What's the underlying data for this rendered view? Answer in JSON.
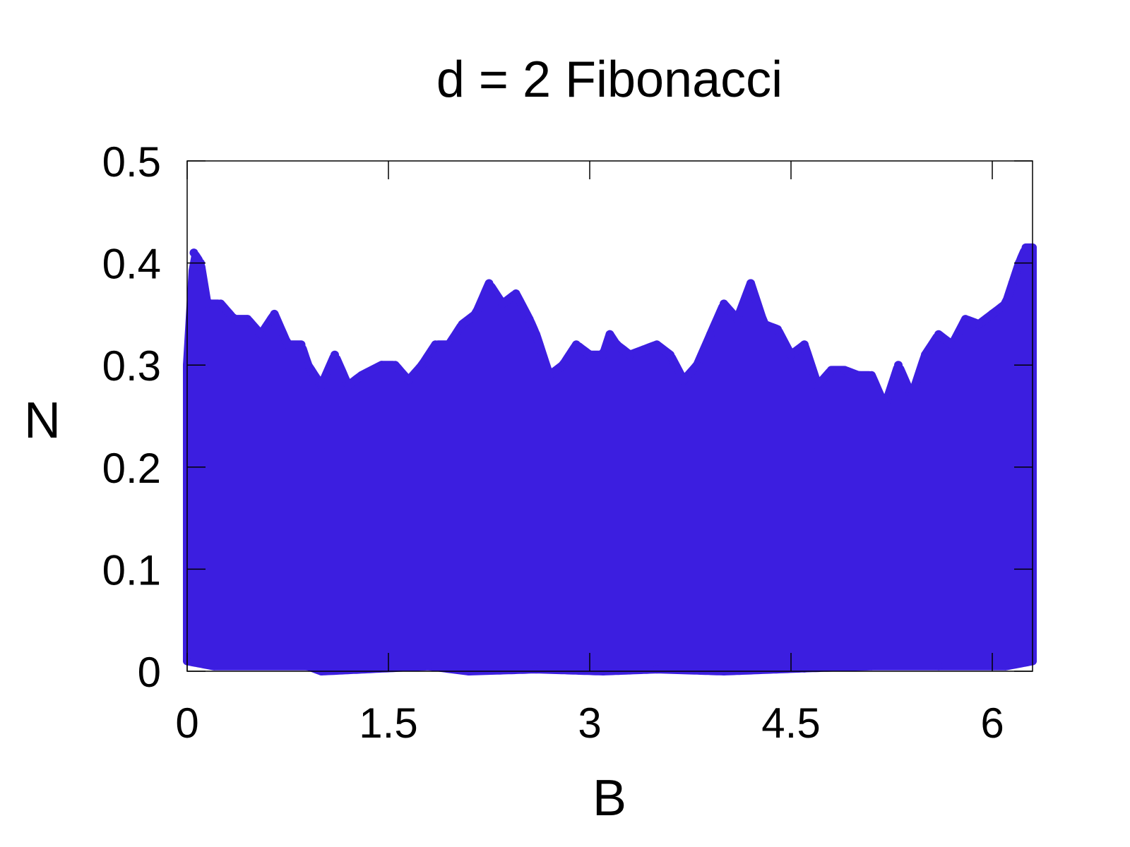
{
  "chart_data": {
    "type": "scatter",
    "title": "d = 2 Fibonacci",
    "xlabel": "B",
    "ylabel": "N",
    "xlim": [
      0,
      6.3
    ],
    "ylim": [
      0,
      0.5
    ],
    "xticks": [
      0,
      1.5,
      3,
      4.5,
      6
    ],
    "yticks": [
      0,
      0.1,
      0.2,
      0.3,
      0.4,
      0.5
    ],
    "x_tick_labels": [
      "0",
      "1.5",
      "3",
      "4.5",
      "6"
    ],
    "y_tick_labels": [
      "0",
      "0.1",
      "0.2",
      "0.3",
      "0.4",
      "0.5"
    ],
    "grid": false,
    "legend": "none",
    "point_color": "#3c1ee0",
    "series": [
      {
        "upper_envelope": [
          [
            0.0,
            0.3
          ],
          [
            0.05,
            0.41
          ],
          [
            0.1,
            0.4
          ],
          [
            0.15,
            0.36
          ],
          [
            0.25,
            0.36
          ],
          [
            0.35,
            0.345
          ],
          [
            0.45,
            0.345
          ],
          [
            0.55,
            0.33
          ],
          [
            0.65,
            0.35
          ],
          [
            0.75,
            0.32
          ],
          [
            0.85,
            0.32
          ],
          [
            0.9,
            0.3
          ],
          [
            1.0,
            0.28
          ],
          [
            1.1,
            0.31
          ],
          [
            1.2,
            0.28
          ],
          [
            1.3,
            0.29
          ],
          [
            1.45,
            0.3
          ],
          [
            1.55,
            0.3
          ],
          [
            1.65,
            0.285
          ],
          [
            1.75,
            0.3
          ],
          [
            1.85,
            0.32
          ],
          [
            1.95,
            0.32
          ],
          [
            2.05,
            0.34
          ],
          [
            2.15,
            0.35
          ],
          [
            2.25,
            0.38
          ],
          [
            2.35,
            0.36
          ],
          [
            2.45,
            0.37
          ],
          [
            2.55,
            0.345
          ],
          [
            2.6,
            0.33
          ],
          [
            2.7,
            0.29
          ],
          [
            2.8,
            0.3
          ],
          [
            2.9,
            0.32
          ],
          [
            3.0,
            0.31
          ],
          [
            3.1,
            0.31
          ],
          [
            3.15,
            0.33
          ],
          [
            3.2,
            0.32
          ],
          [
            3.3,
            0.31
          ],
          [
            3.4,
            0.315
          ],
          [
            3.5,
            0.32
          ],
          [
            3.6,
            0.31
          ],
          [
            3.7,
            0.285
          ],
          [
            3.8,
            0.3
          ],
          [
            3.9,
            0.33
          ],
          [
            4.0,
            0.36
          ],
          [
            4.1,
            0.345
          ],
          [
            4.2,
            0.38
          ],
          [
            4.3,
            0.34
          ],
          [
            4.4,
            0.335
          ],
          [
            4.5,
            0.31
          ],
          [
            4.6,
            0.32
          ],
          [
            4.7,
            0.28
          ],
          [
            4.8,
            0.295
          ],
          [
            4.9,
            0.295
          ],
          [
            5.0,
            0.29
          ],
          [
            5.1,
            0.29
          ],
          [
            5.2,
            0.26
          ],
          [
            5.3,
            0.3
          ],
          [
            5.4,
            0.27
          ],
          [
            5.5,
            0.31
          ],
          [
            5.6,
            0.33
          ],
          [
            5.7,
            0.32
          ],
          [
            5.8,
            0.345
          ],
          [
            5.9,
            0.34
          ],
          [
            6.0,
            0.35
          ],
          [
            6.1,
            0.36
          ],
          [
            6.15,
            0.38
          ],
          [
            6.2,
            0.4
          ],
          [
            6.25,
            0.415
          ],
          [
            6.3,
            0.415
          ]
        ],
        "lower_envelope": [
          [
            0.0,
            0.01
          ],
          [
            0.2,
            0.005
          ],
          [
            0.9,
            0.005
          ],
          [
            1.0,
            0.0
          ],
          [
            1.8,
            0.005
          ],
          [
            2.1,
            0.0
          ],
          [
            2.6,
            0.002
          ],
          [
            3.1,
            0.0
          ],
          [
            3.5,
            0.002
          ],
          [
            4.0,
            0.0
          ],
          [
            4.6,
            0.003
          ],
          [
            5.1,
            0.005
          ],
          [
            5.6,
            0.005
          ],
          [
            6.1,
            0.005
          ],
          [
            6.3,
            0.01
          ]
        ]
      }
    ]
  }
}
